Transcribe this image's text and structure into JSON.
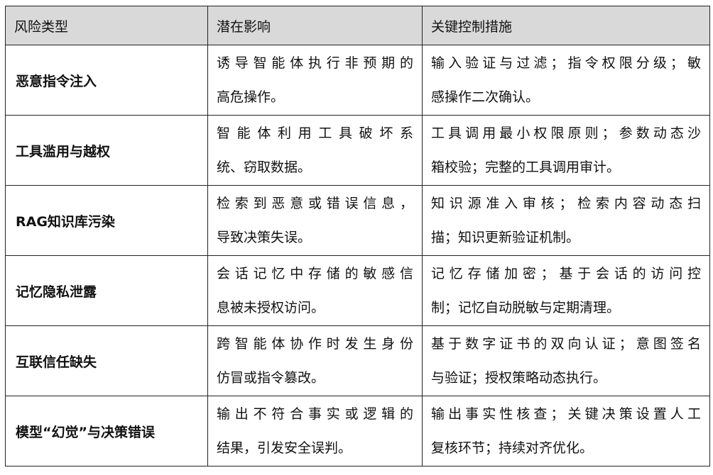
{
  "headers": [
    "风险类型",
    "潜在影响",
    "关键控制措施"
  ],
  "rows": [
    {
      "type": "恶意指令注入",
      "impact": [
        "诱导智能体执行非预期的",
        "高危操作。"
      ],
      "control": [
        "输入验证与过滤；指令权限分级；敏",
        "感操作二次确认。"
      ]
    },
    {
      "type": "工具滥用与越权",
      "impact": [
        "智能体利用工具破坏系",
        "统、窃取数据。"
      ],
      "control": [
        "工具调用最小权限原则；参数动态沙",
        "箱校验；完整的工具调用审计。"
      ]
    },
    {
      "type": "RAG知识库污染",
      "impact": [
        "检索到恶意或错误信息，",
        "导致决策失误。"
      ],
      "control": [
        "知识源准入审核；检索内容动态扫",
        "描；知识更新验证机制。"
      ]
    },
    {
      "type": "记忆隐私泄露",
      "impact": [
        "会话记忆中存储的敏感信",
        "息被未授权访问。"
      ],
      "control": [
        "记忆存储加密；基于会话的访问控",
        "制；记忆自动脱敏与定期清理。"
      ]
    },
    {
      "type": "互联信任缺失",
      "impact": [
        "跨智能体协作时发生身份",
        "仿冒或指令篡改。"
      ],
      "control": [
        "基于数字证书的双向认证；意图签名",
        "与验证；授权策略动态执行。"
      ]
    },
    {
      "type": "模型“幻觉”与决策错误",
      "impact": [
        "输出不符合事实或逻辑的",
        "结果，引发安全误判。"
      ],
      "control": [
        "输出事实性核查；关键决策设置人工",
        "复核环节；持续对齐优化。"
      ]
    }
  ]
}
